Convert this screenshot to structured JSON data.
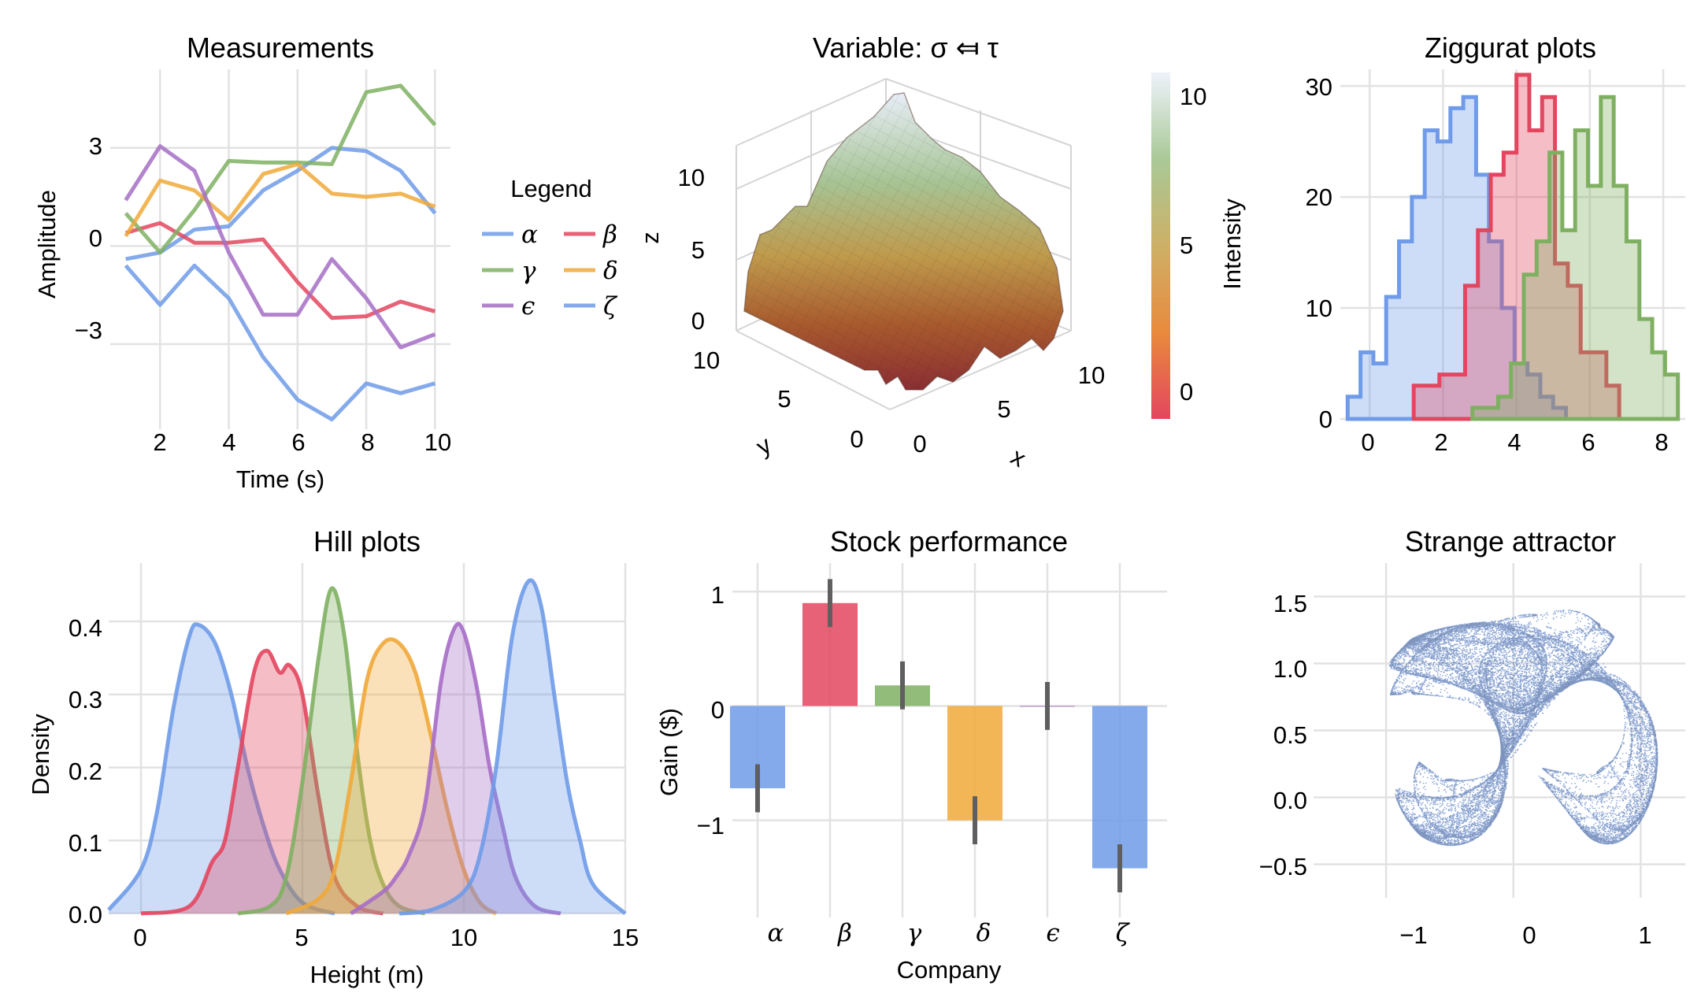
{
  "colors": {
    "blue": "#6f9be8",
    "red": "#e3465f",
    "green": "#7fb062",
    "purple": "#a66ec6",
    "orange": "#f0a93a"
  },
  "chart_data": [
    {
      "id": "measurements",
      "type": "line",
      "title": "Measurements",
      "xlabel": "Time (s)",
      "ylabel": "Amplitude",
      "xlim": [
        0.55,
        10.45
      ],
      "ylim": [
        -5.6,
        5.4
      ],
      "xticks": [
        "2",
        "4",
        "6",
        "8",
        "10"
      ],
      "yticks": [
        "−3",
        "0",
        "3"
      ],
      "grid": true,
      "legend": {
        "title": "Legend",
        "placement": "right"
      },
      "x": [
        1,
        2,
        3,
        4,
        5,
        6,
        7,
        8,
        9,
        10
      ],
      "series": [
        {
          "name": "α",
          "color": "blue",
          "values": [
            -0.4,
            -0.2,
            0.5,
            0.6,
            1.7,
            2.3,
            3.0,
            2.9,
            2.3,
            1.0
          ]
        },
        {
          "name": "β",
          "color": "red",
          "values": [
            0.4,
            0.7,
            0.1,
            0.1,
            0.2,
            -1.1,
            -2.2,
            -2.15,
            -1.7,
            -2.0
          ]
        },
        {
          "name": "γ",
          "color": "green",
          "values": [
            1.0,
            -0.2,
            1.1,
            2.6,
            2.55,
            2.55,
            2.5,
            4.7,
            4.9,
            3.7
          ]
        },
        {
          "name": "δ",
          "color": "orange",
          "values": [
            0.3,
            2.0,
            1.7,
            0.8,
            2.2,
            2.5,
            1.6,
            1.5,
            1.6,
            1.2
          ]
        },
        {
          "name": "ϵ",
          "color": "purple",
          "values": [
            1.4,
            3.05,
            2.3,
            -0.2,
            -2.1,
            -2.1,
            -0.4,
            -1.6,
            -3.1,
            -2.7
          ]
        },
        {
          "name": "ζ",
          "color": "blue",
          "values": [
            -0.6,
            -1.8,
            -0.6,
            -1.6,
            -3.4,
            -4.7,
            -5.3,
            -4.2,
            -4.5,
            -4.2
          ]
        }
      ]
    },
    {
      "id": "surface",
      "type": "heatmap",
      "title": "Variable: σ ⤆ τ",
      "xlabel": "x",
      "ylabel": "y",
      "zlabel": "z",
      "xticks": [
        "0",
        "5",
        "10"
      ],
      "yticks": [
        "0",
        "5",
        "10"
      ],
      "zticks": [
        "0",
        "5",
        "10"
      ],
      "colorbar": {
        "label": "Intensity",
        "ticks": [
          "0",
          "5",
          "10"
        ],
        "range": [
          -1,
          11
        ]
      }
    },
    {
      "id": "ziggurat",
      "type": "bar",
      "title": "Ziggurat plots",
      "xlim": [
        -0.8,
        8.6
      ],
      "ylim": [
        0,
        31.5
      ],
      "xticks": [
        "0",
        "2",
        "4",
        "6",
        "8"
      ],
      "yticks": [
        "0",
        "10",
        "20",
        "30"
      ],
      "grid": true,
      "series": [
        {
          "color": "blue",
          "start": -0.6,
          "width": 0.35,
          "values": [
            2,
            6,
            5,
            11,
            16,
            20,
            26,
            25,
            28,
            29,
            22,
            16,
            10,
            5,
            4,
            2,
            1
          ]
        },
        {
          "color": "red",
          "start": 1.2,
          "width": 0.35,
          "values": [
            3,
            3,
            4,
            4,
            12,
            17,
            22,
            24,
            31,
            26,
            29,
            14,
            12,
            6,
            6,
            3
          ]
        },
        {
          "color": "green",
          "start": 2.8,
          "width": 0.35,
          "values": [
            1,
            1,
            2,
            5,
            13,
            16,
            24,
            17,
            26,
            21,
            29,
            21,
            16,
            9,
            6,
            4
          ]
        }
      ]
    },
    {
      "id": "hills",
      "type": "area",
      "title": "Hill plots",
      "xlabel": "Height (m)",
      "ylabel": "Density",
      "xlim": [
        -1,
        15
      ],
      "ylim": [
        0,
        0.48
      ],
      "xticks": [
        "0",
        "5",
        "10",
        "15"
      ],
      "yticks": [
        "0.0",
        "0.1",
        "0.2",
        "0.3",
        "0.4"
      ],
      "grid": true,
      "series": [
        {
          "color": "blue",
          "x": [
            -1,
            0,
            0.5,
            1,
            1.5,
            1.8,
            2.3,
            2.8,
            3.3,
            3.8,
            4.3,
            5,
            6
          ],
          "values": [
            0.005,
            0.06,
            0.14,
            0.28,
            0.38,
            0.395,
            0.37,
            0.3,
            0.2,
            0.12,
            0.06,
            0.015,
            0
          ]
        },
        {
          "color": "red",
          "x": [
            0,
            1.5,
            2.2,
            2.6,
            3,
            3.5,
            3.9,
            4.3,
            4.6,
            5,
            5.5,
            6,
            6.7,
            7.5
          ],
          "values": [
            0,
            0.01,
            0.07,
            0.1,
            0.2,
            0.33,
            0.36,
            0.33,
            0.34,
            0.3,
            0.16,
            0.05,
            0.01,
            0
          ]
        },
        {
          "color": "green",
          "x": [
            3,
            4,
            4.5,
            5,
            5.5,
            5.9,
            6.3,
            6.7,
            7.1,
            7.5,
            8,
            8.8
          ],
          "values": [
            0,
            0.01,
            0.05,
            0.18,
            0.35,
            0.445,
            0.38,
            0.22,
            0.1,
            0.04,
            0.01,
            0
          ]
        },
        {
          "color": "orange",
          "x": [
            4.5,
            5.5,
            6,
            6.5,
            7,
            7.5,
            8,
            8.5,
            9,
            9.5,
            10,
            10.5,
            11
          ],
          "values": [
            0,
            0.02,
            0.06,
            0.18,
            0.32,
            0.37,
            0.37,
            0.33,
            0.24,
            0.14,
            0.06,
            0.015,
            0
          ]
        },
        {
          "color": "purple",
          "x": [
            6.5,
            7.5,
            7.9,
            8.3,
            8.8,
            9.3,
            9.7,
            10,
            10.4,
            10.8,
            11.2,
            11.6,
            12.2,
            13
          ],
          "values": [
            0,
            0.03,
            0.05,
            0.08,
            0.15,
            0.32,
            0.39,
            0.385,
            0.31,
            0.2,
            0.12,
            0.05,
            0.01,
            0
          ]
        },
        {
          "color": "blue",
          "x": [
            8,
            9,
            10,
            10.5,
            11,
            11.5,
            12,
            12.4,
            12.8,
            13.2,
            13.6,
            14,
            15
          ],
          "values": [
            0,
            0.005,
            0.03,
            0.08,
            0.2,
            0.38,
            0.455,
            0.42,
            0.3,
            0.18,
            0.1,
            0.04,
            0
          ]
        }
      ]
    },
    {
      "id": "stocks",
      "type": "bar",
      "title": "Stock performance",
      "xlabel": "Company",
      "ylabel": "Gain ($)",
      "ylim": [
        -1.85,
        1.25
      ],
      "yticks": [
        "−1",
        "0",
        "1"
      ],
      "grid": true,
      "categories": [
        "α",
        "β",
        "γ",
        "δ",
        "ϵ",
        "ζ"
      ],
      "values": [
        -0.72,
        0.9,
        0.18,
        -1.0,
        0.0,
        -1.42
      ],
      "errors": [
        0.21,
        0.21,
        0.21,
        0.21,
        0.21,
        0.21
      ],
      "colors": [
        "blue",
        "red",
        "green",
        "orange",
        "purple",
        "blue"
      ]
    },
    {
      "id": "attractor",
      "type": "scatter",
      "title": "Strange attractor",
      "xlim": [
        -1.57,
        1.35
      ],
      "ylim": [
        -0.75,
        1.75
      ],
      "xticks": [
        "−1",
        "0",
        "1"
      ],
      "yticks": [
        "−0.5",
        "0.0",
        "0.5",
        "1.0",
        "1.5"
      ],
      "grid": true,
      "color": "blue"
    }
  ]
}
